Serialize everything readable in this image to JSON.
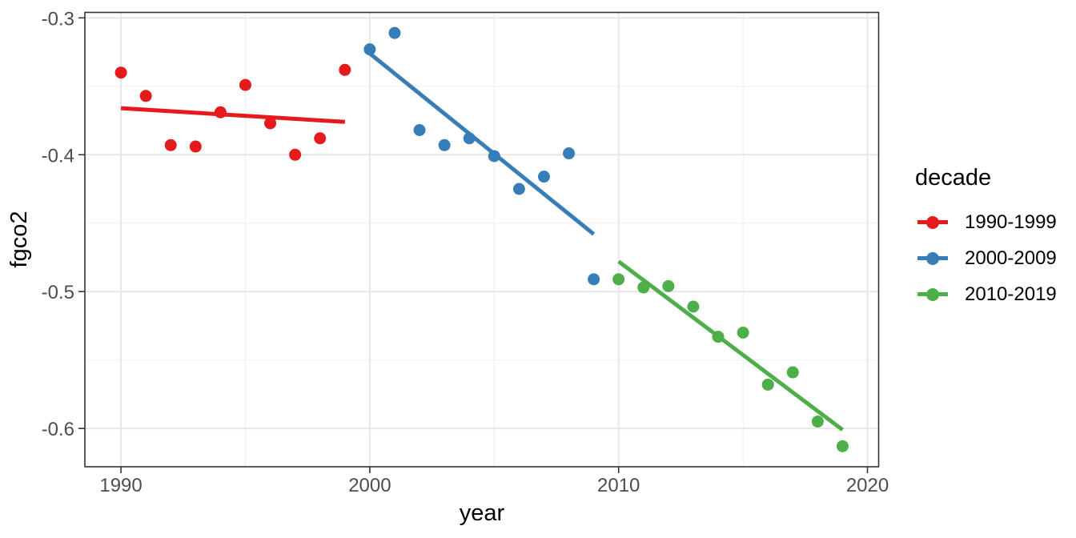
{
  "chart_data": {
    "type": "scatter",
    "title": "",
    "xlabel": "year",
    "ylabel": "fgco2",
    "legend_title": "decade",
    "legend_position": "right",
    "grid": true,
    "xlim": [
      1988.55,
      2020.45
    ],
    "ylim": [
      -0.628,
      -0.296
    ],
    "x_ticks": [
      1990,
      2000,
      2010,
      2020
    ],
    "x_tick_labels": [
      "1990",
      "2000",
      "2010",
      "2020"
    ],
    "y_ticks": [
      -0.3,
      -0.4,
      -0.5,
      -0.6
    ],
    "y_tick_labels": [
      "-0.3",
      "-0.4",
      "-0.5",
      "-0.6"
    ],
    "x_minor_ticks": [
      1995,
      2005,
      2015
    ],
    "y_minor_ticks": [
      -0.35,
      -0.45,
      -0.55
    ],
    "series": [
      {
        "name": "1990-1999",
        "color": "#E41A1C",
        "x": [
          1990,
          1991,
          1992,
          1993,
          1994,
          1995,
          1996,
          1997,
          1998,
          1999
        ],
        "y": [
          -0.34,
          -0.357,
          -0.393,
          -0.394,
          -0.369,
          -0.349,
          -0.377,
          -0.4,
          -0.388,
          -0.338
        ],
        "trend": {
          "x": [
            1990,
            1999
          ],
          "y": [
            -0.366,
            -0.376
          ]
        }
      },
      {
        "name": "2000-2009",
        "color": "#377EB8",
        "x": [
          2000,
          2001,
          2002,
          2003,
          2004,
          2005,
          2006,
          2007,
          2008,
          2009
        ],
        "y": [
          -0.323,
          -0.311,
          -0.382,
          -0.393,
          -0.388,
          -0.401,
          -0.425,
          -0.416,
          -0.399,
          -0.491
        ],
        "trend": {
          "x": [
            2000,
            2009
          ],
          "y": [
            -0.326,
            -0.458
          ]
        }
      },
      {
        "name": "2010-2019",
        "color": "#4DAF4A",
        "x": [
          2010,
          2011,
          2012,
          2013,
          2014,
          2015,
          2016,
          2017,
          2018,
          2019
        ],
        "y": [
          -0.491,
          -0.497,
          -0.496,
          -0.511,
          -0.533,
          -0.53,
          -0.568,
          -0.559,
          -0.595,
          -0.613
        ],
        "trend": {
          "x": [
            2010,
            2019
          ],
          "y": [
            -0.478,
            -0.601
          ]
        }
      }
    ]
  },
  "style": {
    "panel_background": "#ffffff",
    "grid_major_color": "#e7e7e7",
    "grid_minor_color": "#f0f0f0",
    "panel_border_color": "#333333",
    "tick_color": "#333333",
    "tick_label_color": "#4d4d4d",
    "title_color": "#000000"
  }
}
